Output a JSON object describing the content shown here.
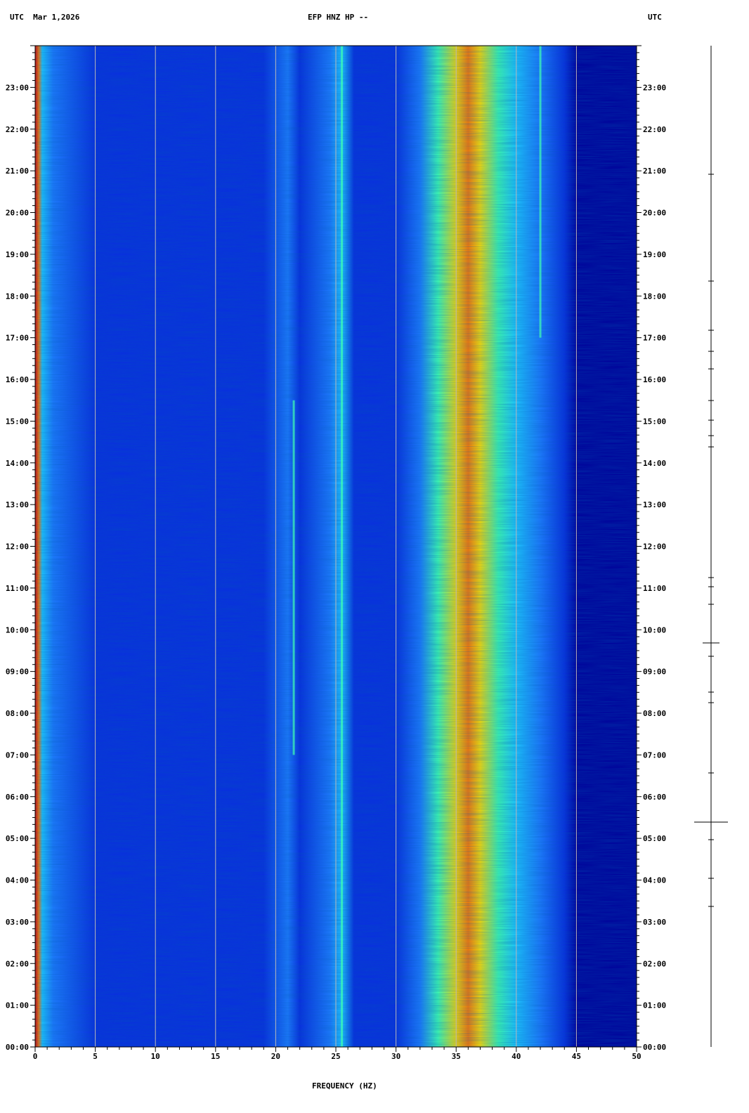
{
  "header": {
    "left": "UTC  Mar 1,2026",
    "center": "EFP HNZ HP --",
    "right": "UTC"
  },
  "chart_data": {
    "type": "heatmap",
    "title": "EFP HNZ HP --",
    "date": "Mar 1,2026",
    "timezone": "UTC",
    "xlabel": "FREQUENCY (HZ)",
    "xlim": [
      0,
      50
    ],
    "x_ticks": [
      0,
      5,
      10,
      15,
      20,
      25,
      30,
      35,
      40,
      45,
      50
    ],
    "ylabel": "UTC",
    "y_ticks": [
      "00:00",
      "01:00",
      "02:00",
      "03:00",
      "04:00",
      "05:00",
      "06:00",
      "07:00",
      "08:00",
      "09:00",
      "10:00",
      "11:00",
      "12:00",
      "13:00",
      "14:00",
      "15:00",
      "16:00",
      "17:00",
      "18:00",
      "19:00",
      "20:00",
      "21:00",
      "22:00",
      "23:00"
    ],
    "grid": true,
    "colormap": [
      "#00009a",
      "#0a2ee0",
      "#1f7bff",
      "#20c8ff",
      "#40ffb0",
      "#c8ff30",
      "#ffe000",
      "#ff7a00",
      "#e00000"
    ],
    "features": [
      {
        "name": "low-frequency energy",
        "freq_range": [
          0,
          1
        ],
        "level": "high"
      },
      {
        "name": "broad energy band",
        "freq_range": [
          33,
          41
        ],
        "peak_freq": 36,
        "level": "high"
      },
      {
        "name": "narrow band",
        "freq": 25.5,
        "level": "medium"
      },
      {
        "name": "narrow band",
        "freq": 21.5,
        "time_range": [
          "07:00",
          "15:30"
        ],
        "level": "medium"
      },
      {
        "name": "narrow band",
        "freq": 42,
        "time_range": [
          "17:00",
          "24:00"
        ],
        "level": "medium"
      },
      {
        "name": "low-level cutoff",
        "freq": 45,
        "level": "low"
      }
    ]
  }
}
